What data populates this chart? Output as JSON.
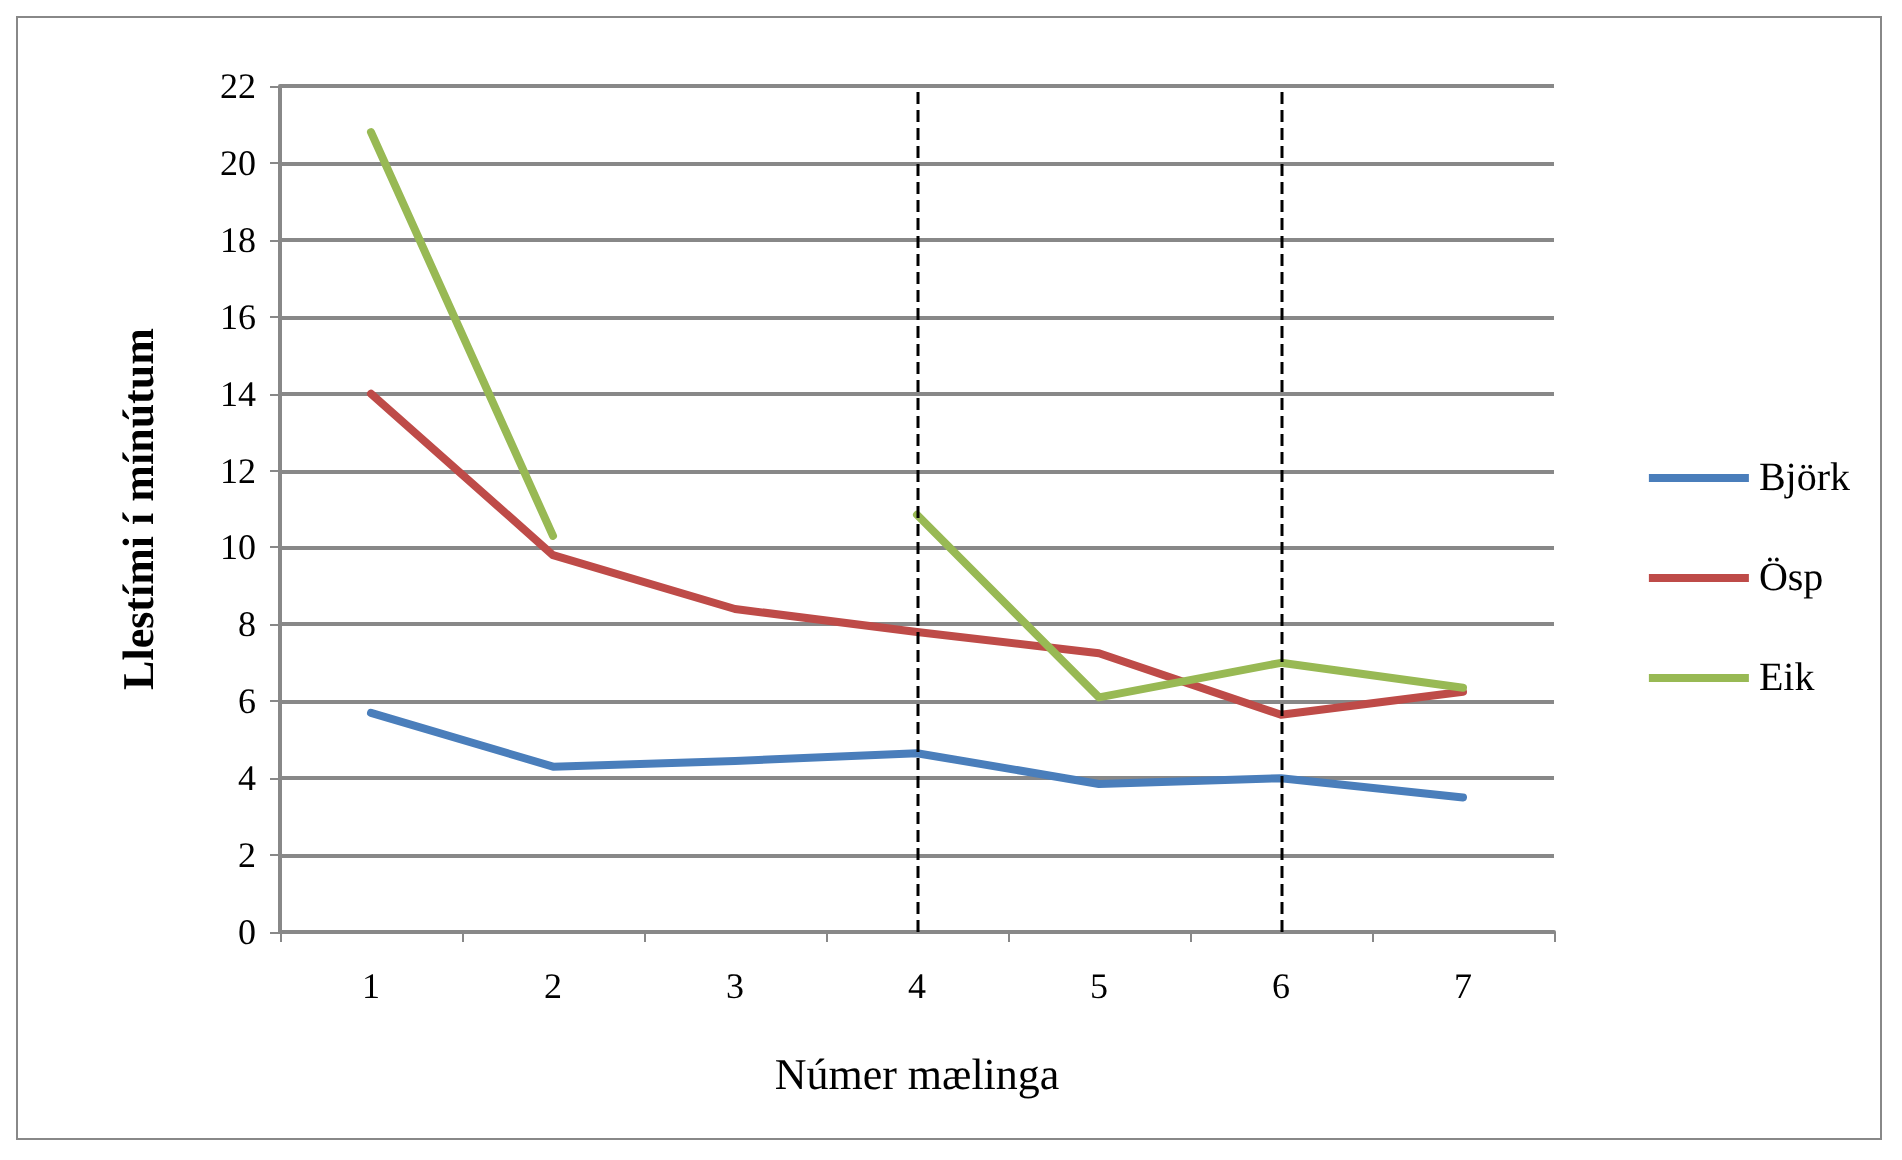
{
  "chart_data": {
    "type": "line",
    "xlabel": "Númer mælinga",
    "ylabel": "Llestími í mínútum",
    "categories": [
      "1",
      "2",
      "3",
      "4",
      "5",
      "6",
      "7"
    ],
    "series": [
      {
        "name": "Björk",
        "color": "#4a7ebb",
        "values": [
          5.7,
          4.3,
          4.45,
          4.65,
          3.85,
          4.0,
          3.5
        ]
      },
      {
        "name": "Ösp",
        "color": "#be4b48",
        "values": [
          14.0,
          9.8,
          8.4,
          7.8,
          7.25,
          5.65,
          6.25
        ]
      },
      {
        "name": "Eik",
        "color": "#98b954",
        "values": [
          20.8,
          10.3,
          null,
          10.85,
          6.1,
          7.0,
          6.35
        ]
      }
    ],
    "ylim": [
      0,
      22
    ],
    "yticks": [
      0,
      2,
      4,
      6,
      8,
      10,
      12,
      14,
      16,
      18,
      20,
      22
    ],
    "grid": "y",
    "legend": "right",
    "marker": "none",
    "line_style": "solid",
    "ref_lines": [
      {
        "axis": "x",
        "value": "4",
        "color": "#000000",
        "line_style": "dashed"
      },
      {
        "axis": "x",
        "value": "6",
        "color": "#000000",
        "line_style": "dashed"
      }
    ]
  }
}
